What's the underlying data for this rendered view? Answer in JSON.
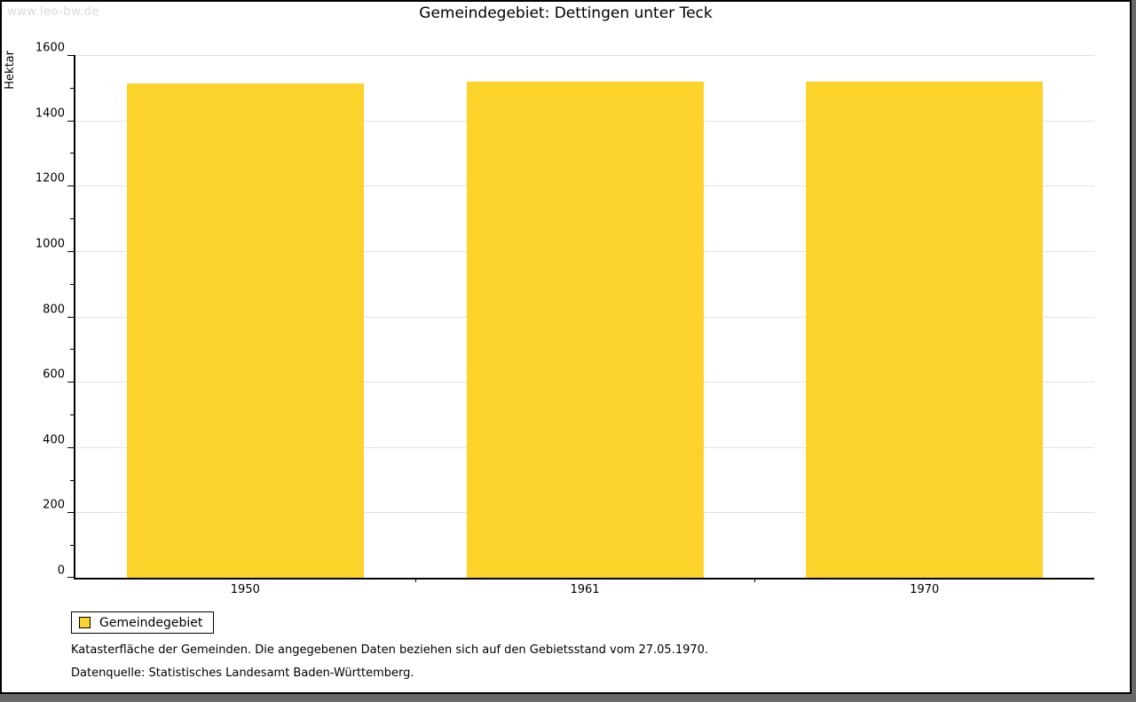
{
  "page": {
    "watermark": "www.leo-bw.de",
    "title": "Gemeindegebiet: Dettingen unter Teck"
  },
  "chart_data": {
    "type": "bar",
    "title": "Gemeindegebiet: Dettingen unter Teck",
    "categories": [
      "1950",
      "1961",
      "1970"
    ],
    "series": [
      {
        "name": "Gemeindegebiet",
        "values": [
          1513,
          1518,
          1518
        ]
      }
    ],
    "xlabel": "",
    "ylabel": "Hektar",
    "ylim": [
      0,
      1600
    ],
    "ytick_step": 200,
    "yminor_step": 100,
    "grid": true,
    "bar_color": "#FCD32B",
    "legend_position": "bottom-left"
  },
  "legend": {
    "items": [
      {
        "label": "Gemeindegebiet",
        "color": "#FCD32B"
      }
    ]
  },
  "footer": {
    "line1": "Katasterfläche der Gemeinden. Die angegebenen Daten beziehen sich auf den Gebietsstand vom 27.05.1970.",
    "line2": "Datenquelle: Statistisches Landesamt Baden-Württemberg."
  }
}
